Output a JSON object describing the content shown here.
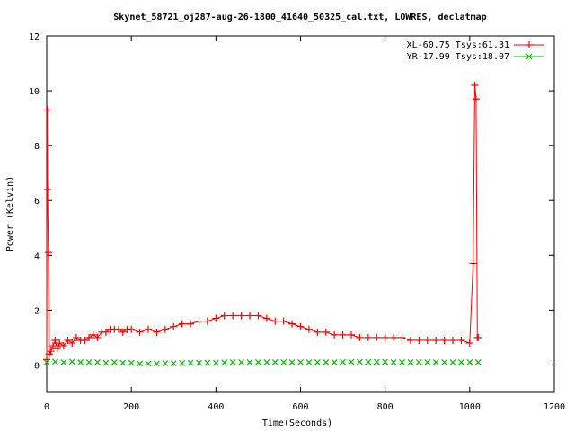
{
  "chart_data": {
    "type": "scatter",
    "title": "Skynet_58721_oj287-aug-26-1800_41640_50325_cal.txt, LOWRES, declatmap",
    "xlabel": "Time(Seconds)",
    "ylabel": "Power (Kelvin)",
    "xlim": [
      0,
      1200
    ],
    "ylim": [
      -1,
      12
    ],
    "xticks": [
      0,
      200,
      400,
      600,
      800,
      1000,
      1200
    ],
    "yticks": [
      0,
      2,
      4,
      6,
      8,
      10,
      12
    ],
    "grid": false,
    "legend_position": "top-right",
    "series": [
      {
        "name": "XL-60.75 Tsys:61.31",
        "color": "#ff0000",
        "marker": "plus",
        "connected": true,
        "x": [
          0,
          1,
          2,
          4,
          6,
          10,
          15,
          20,
          25,
          30,
          40,
          50,
          60,
          70,
          80,
          90,
          100,
          110,
          120,
          130,
          140,
          150,
          160,
          170,
          180,
          190,
          200,
          220,
          240,
          260,
          280,
          300,
          320,
          340,
          360,
          380,
          400,
          420,
          440,
          460,
          480,
          500,
          520,
          540,
          560,
          580,
          600,
          620,
          640,
          660,
          680,
          700,
          720,
          740,
          760,
          780,
          800,
          820,
          840,
          860,
          880,
          900,
          920,
          940,
          960,
          980,
          1000,
          1008,
          1012,
          1015,
          1018,
          1020
        ],
        "y": [
          0.2,
          9.3,
          6.4,
          4.1,
          0.4,
          0.5,
          0.7,
          0.9,
          0.6,
          0.8,
          0.7,
          0.9,
          0.8,
          1.0,
          0.9,
          0.9,
          1.0,
          1.1,
          1.0,
          1.2,
          1.2,
          1.3,
          1.3,
          1.3,
          1.2,
          1.3,
          1.3,
          1.2,
          1.3,
          1.2,
          1.3,
          1.4,
          1.5,
          1.5,
          1.6,
          1.6,
          1.7,
          1.8,
          1.8,
          1.8,
          1.8,
          1.8,
          1.7,
          1.6,
          1.6,
          1.5,
          1.4,
          1.3,
          1.2,
          1.2,
          1.1,
          1.1,
          1.1,
          1.0,
          1.0,
          1.0,
          1.0,
          1.0,
          1.0,
          0.9,
          0.9,
          0.9,
          0.9,
          0.9,
          0.9,
          0.9,
          0.8,
          3.7,
          10.2,
          9.7,
          1.0,
          1.0
        ]
      },
      {
        "name": "YR-17.99 Tsys:18.07",
        "color": "#00c000",
        "marker": "cross",
        "connected": false,
        "x": [
          0,
          20,
          40,
          60,
          80,
          100,
          120,
          140,
          160,
          180,
          200,
          220,
          240,
          260,
          280,
          300,
          320,
          340,
          360,
          380,
          400,
          420,
          440,
          460,
          480,
          500,
          520,
          540,
          560,
          580,
          600,
          620,
          640,
          660,
          680,
          700,
          720,
          740,
          760,
          780,
          800,
          820,
          840,
          860,
          880,
          900,
          920,
          940,
          960,
          980,
          1000,
          1020
        ],
        "y": [
          0.1,
          0.12,
          0.1,
          0.12,
          0.1,
          0.1,
          0.1,
          0.08,
          0.1,
          0.08,
          0.08,
          0.05,
          0.05,
          0.05,
          0.06,
          0.06,
          0.07,
          0.08,
          0.08,
          0.08,
          0.08,
          0.09,
          0.1,
          0.1,
          0.1,
          0.1,
          0.1,
          0.1,
          0.1,
          0.1,
          0.1,
          0.1,
          0.1,
          0.1,
          0.1,
          0.11,
          0.11,
          0.11,
          0.11,
          0.11,
          0.11,
          0.1,
          0.1,
          0.1,
          0.1,
          0.1,
          0.1,
          0.1,
          0.1,
          0.1,
          0.1,
          0.1
        ]
      }
    ]
  }
}
